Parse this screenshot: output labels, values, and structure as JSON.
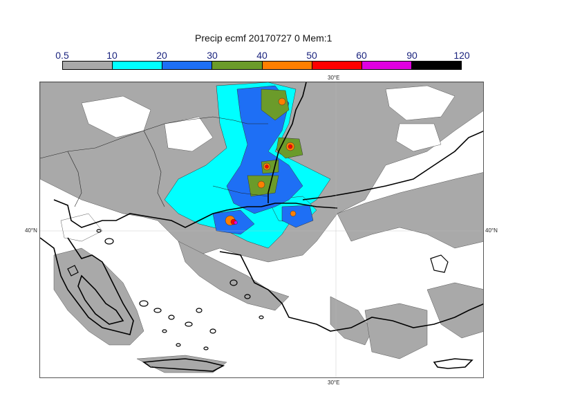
{
  "title": "Precip ecmf 20170727 0 Mem:1",
  "legend": {
    "ticks": [
      "0.5",
      "10",
      "20",
      "30",
      "40",
      "50",
      "60",
      "90",
      "120"
    ],
    "colors": [
      "#a9a9a9",
      "#00ffff",
      "#1e6ff5",
      "#6b9b2a",
      "#ff7f00",
      "#ff0000",
      "#e000e0",
      "#000000"
    ]
  },
  "map": {
    "lon_label": "30°E",
    "lat_label": "40°N"
  }
}
